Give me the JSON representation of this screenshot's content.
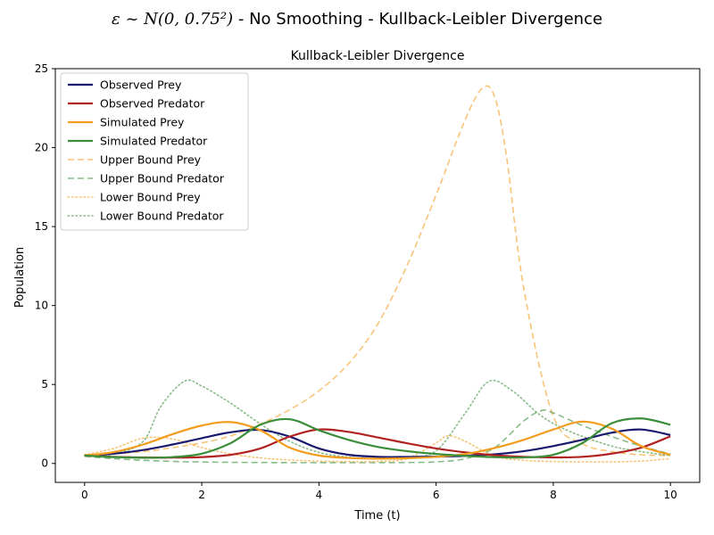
{
  "figure": {
    "suptitle_math": "ε ~ N(0, 0.75²)",
    "suptitle_rest": " - No Smoothing - Kullback-Leibler Divergence"
  },
  "chart_data": {
    "type": "line",
    "title": "Kullback-Leibler Divergence",
    "xlabel": "Time (t)",
    "ylabel": "Population",
    "xlim": [
      -0.5,
      10.5
    ],
    "ylim": [
      -1.2,
      25
    ],
    "xticks": [
      0,
      2,
      4,
      6,
      8,
      10
    ],
    "yticks": [
      0,
      5,
      10,
      15,
      20,
      25
    ],
    "grid": false,
    "legend_position": "upper-left",
    "series": [
      {
        "name": "Observed Prey",
        "color": "#191970",
        "style": "solid",
        "x": [
          0,
          0.5,
          1,
          1.5,
          2,
          2.5,
          3,
          3.5,
          4,
          4.5,
          5,
          5.5,
          6,
          6.5,
          7,
          7.5,
          8,
          8.5,
          9,
          9.5,
          10
        ],
        "y": [
          0.5,
          0.62,
          0.85,
          1.2,
          1.6,
          1.98,
          2.12,
          1.7,
          0.95,
          0.55,
          0.42,
          0.41,
          0.43,
          0.48,
          0.58,
          0.78,
          1.1,
          1.5,
          1.95,
          2.15,
          1.8
        ]
      },
      {
        "name": "Observed Predator",
        "color": "#B22222",
        "style": "solid",
        "x": [
          0,
          0.5,
          1,
          1.5,
          2,
          2.5,
          3,
          3.5,
          4,
          4.5,
          5,
          5.5,
          6,
          6.5,
          7,
          7.5,
          8,
          8.5,
          9,
          9.5,
          10
        ],
        "y": [
          0.5,
          0.42,
          0.38,
          0.37,
          0.4,
          0.55,
          0.95,
          1.7,
          2.15,
          2.0,
          1.65,
          1.28,
          0.95,
          0.7,
          0.52,
          0.42,
          0.38,
          0.42,
          0.62,
          1.0,
          1.72
        ]
      },
      {
        "name": "Simulated Prey",
        "color": "#F39C1E",
        "style": "solid",
        "x": [
          0,
          0.5,
          1,
          1.5,
          2,
          2.5,
          3,
          3.5,
          4,
          4.5,
          5,
          5.5,
          6,
          6.5,
          7,
          7.5,
          8,
          8.5,
          9,
          9.5,
          10
        ],
        "y": [
          0.5,
          0.72,
          1.2,
          1.85,
          2.4,
          2.62,
          2.1,
          1.0,
          0.5,
          0.35,
          0.3,
          0.33,
          0.42,
          0.6,
          0.98,
          1.5,
          2.15,
          2.65,
          2.2,
          1.1,
          0.55
        ]
      },
      {
        "name": "Simulated Predator",
        "color": "#3A8E3A",
        "style": "solid",
        "x": [
          0,
          0.5,
          1,
          1.5,
          2,
          2.5,
          3,
          3.5,
          4,
          4.5,
          5,
          5.5,
          6,
          6.5,
          7,
          7.5,
          8,
          8.5,
          9,
          9.5,
          10
        ],
        "y": [
          0.5,
          0.4,
          0.36,
          0.4,
          0.62,
          1.3,
          2.45,
          2.8,
          2.1,
          1.5,
          1.05,
          0.78,
          0.6,
          0.48,
          0.4,
          0.38,
          0.55,
          1.3,
          2.55,
          2.85,
          2.45
        ]
      },
      {
        "name": "Upper Bound Prey",
        "color": "#F39C1E",
        "style": "dashed",
        "x": [
          0,
          0.5,
          1,
          1.5,
          2,
          2.5,
          3,
          3.5,
          4,
          4.5,
          5,
          5.5,
          6,
          6.5,
          6.8,
          7,
          7.2,
          7.5,
          8,
          8.5,
          9,
          9.5,
          10
        ],
        "y": [
          0.55,
          0.62,
          0.75,
          1.0,
          1.3,
          1.75,
          2.5,
          3.4,
          4.6,
          6.3,
          8.8,
          12.5,
          17.0,
          21.8,
          23.8,
          23.2,
          19.5,
          11.0,
          3.0,
          1.25,
          0.75,
          0.55,
          0.5
        ]
      },
      {
        "name": "Upper Bound Predator",
        "color": "#3A8E3A",
        "style": "dashed",
        "x": [
          0,
          0.5,
          1,
          1.5,
          2,
          2.5,
          3,
          3.5,
          4,
          4.5,
          5,
          5.5,
          6,
          6.5,
          7,
          7.5,
          7.8,
          8,
          8.5,
          9,
          9.5,
          10
        ],
        "y": [
          0.45,
          0.3,
          0.2,
          0.13,
          0.09,
          0.07,
          0.06,
          0.05,
          0.05,
          0.05,
          0.05,
          0.06,
          0.1,
          0.3,
          1.0,
          2.7,
          3.35,
          3.2,
          2.4,
          1.7,
          1.1,
          0.6
        ]
      },
      {
        "name": "Lower Bound Prey",
        "color": "#F39C1E",
        "style": "dotted",
        "x": [
          0,
          0.5,
          1,
          1.5,
          2,
          2.5,
          3,
          3.5,
          4,
          4.5,
          5,
          5.5,
          6,
          6.2,
          6.5,
          7,
          7.5,
          8,
          8.5,
          9,
          9.5,
          10
        ],
        "y": [
          0.55,
          0.95,
          1.6,
          1.55,
          1.0,
          0.6,
          0.35,
          0.22,
          0.15,
          0.12,
          0.13,
          0.3,
          1.3,
          1.75,
          1.4,
          0.45,
          0.2,
          0.12,
          0.1,
          0.1,
          0.15,
          0.3
        ]
      },
      {
        "name": "Lower Bound Predator",
        "color": "#3A8E3A",
        "style": "dotted",
        "x": [
          0,
          0.5,
          1,
          1.3,
          1.7,
          2,
          2.5,
          3,
          3.5,
          4,
          4.5,
          5,
          5.5,
          6,
          6.5,
          6.9,
          7.3,
          7.8,
          8.3,
          9,
          9.5,
          10
        ],
        "y": [
          0.5,
          0.6,
          1.4,
          3.6,
          5.2,
          4.9,
          3.8,
          2.5,
          1.4,
          0.7,
          0.4,
          0.3,
          0.35,
          0.8,
          3.2,
          5.2,
          4.6,
          3.0,
          2.0,
          1.1,
          0.75,
          0.5
        ]
      }
    ]
  }
}
